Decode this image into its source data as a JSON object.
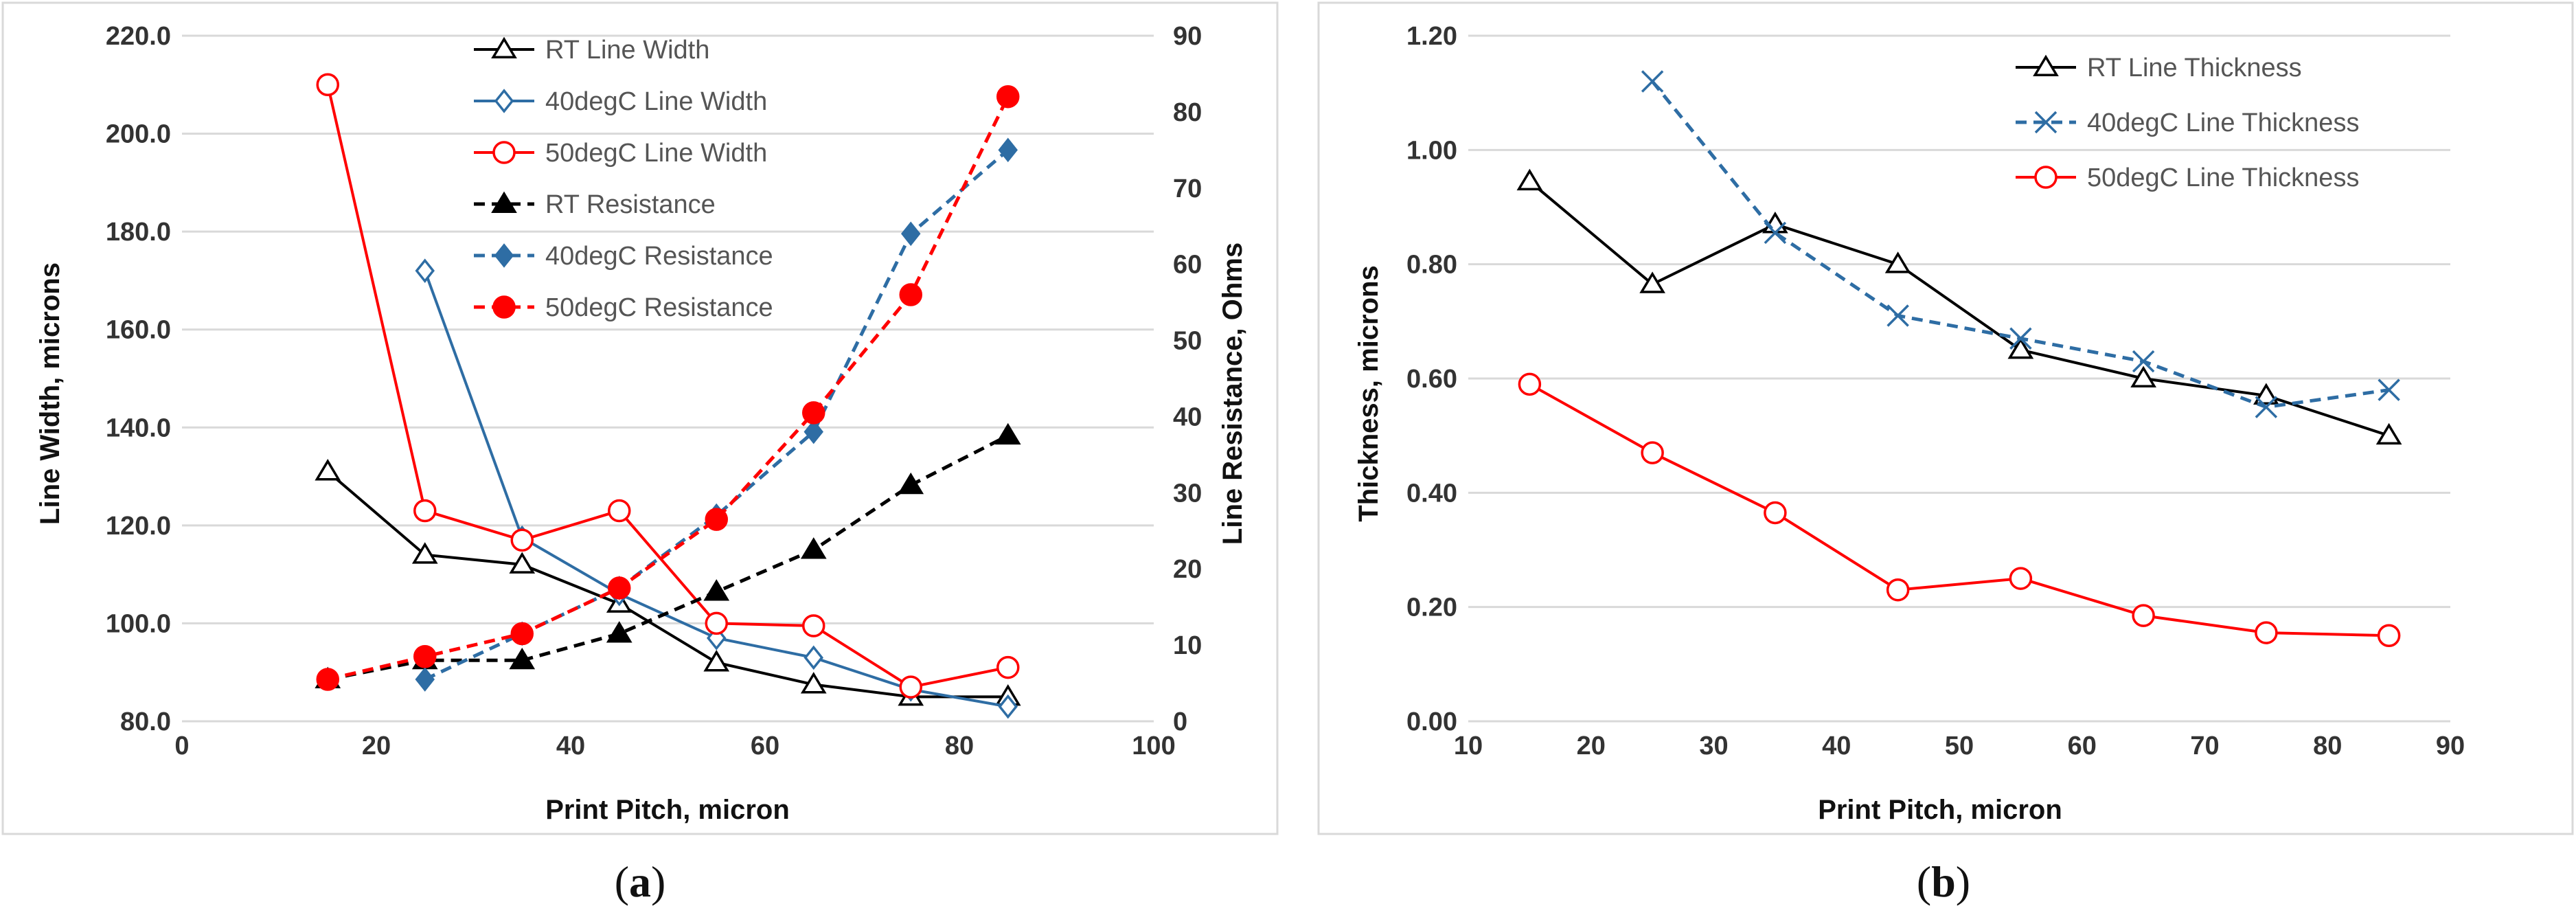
{
  "captions": {
    "a_open": "(",
    "a_letter": "a",
    "a_close": ")",
    "b_open": "(",
    "b_letter": "b",
    "b_close": ")"
  },
  "chart_data": [
    {
      "id": "a",
      "type": "line",
      "x": [
        15,
        25,
        35,
        45,
        55,
        65,
        75,
        85
      ],
      "xlabel": "Print Pitch, micron",
      "ylabel": "Line Width, microns",
      "y2label": "Line Resistance, Ohms",
      "xlim": [
        0,
        100
      ],
      "ylim": [
        80,
        220
      ],
      "y2lim": [
        0,
        90
      ],
      "xticks": [
        "0",
        "20",
        "40",
        "60",
        "80",
        "100"
      ],
      "xtick_values": [
        0,
        20,
        40,
        60,
        80,
        100
      ],
      "yticks": [
        "80.0",
        "100.0",
        "120.0",
        "140.0",
        "160.0",
        "180.0",
        "200.0",
        "220.0"
      ],
      "ytick_values": [
        80,
        100,
        120,
        140,
        160,
        180,
        200,
        220
      ],
      "y2ticks": [
        "0",
        "10",
        "20",
        "30",
        "40",
        "50",
        "60",
        "70",
        "80",
        "90"
      ],
      "y2tick_values": [
        0,
        10,
        20,
        30,
        40,
        50,
        60,
        70,
        80,
        90
      ],
      "legend_position": "top-center",
      "series": [
        {
          "name": "RT Line Width",
          "axis": "left",
          "color": "#000000",
          "dash": "solid",
          "marker": "triangle-open",
          "x": [
            15,
            25,
            35,
            45,
            55,
            65,
            75,
            85
          ],
          "values": [
            131,
            114,
            112,
            104,
            92,
            87.5,
            85,
            85
          ]
        },
        {
          "name": "40degC Line Width",
          "axis": "left",
          "color": "#2e6da4",
          "dash": "solid",
          "marker": "diamond-open",
          "x": [
            25,
            35,
            45,
            55,
            65,
            75,
            85
          ],
          "values": [
            172,
            117.5,
            106,
            97,
            93,
            86.5,
            83
          ]
        },
        {
          "name": "50degC Line Width",
          "axis": "left",
          "color": "#ff0000",
          "dash": "solid",
          "marker": "circle-open",
          "x": [
            15,
            25,
            35,
            45,
            55,
            65,
            75,
            85
          ],
          "values": [
            210,
            123,
            117,
            123,
            100,
            99.5,
            87,
            91
          ]
        },
        {
          "name": "RT Resistance",
          "axis": "right",
          "color": "#000000",
          "dash": "dashed",
          "marker": "triangle-filled",
          "x": [
            15,
            25,
            35,
            45,
            55,
            65,
            75,
            85
          ],
          "values": [
            5.5,
            8,
            8,
            11.5,
            17,
            22.5,
            31,
            37.5
          ]
        },
        {
          "name": "40degC Resistance",
          "axis": "right",
          "color": "#2e6da4",
          "dash": "dashed",
          "marker": "diamond-filled",
          "x": [
            25,
            35,
            45,
            55,
            65,
            75,
            85
          ],
          "values": [
            5.5,
            11.5,
            17.5,
            27,
            38,
            64,
            75
          ]
        },
        {
          "name": "50degC Resistance",
          "axis": "right",
          "color": "#ff0000",
          "dash": "dashed",
          "marker": "circle-filled",
          "x": [
            15,
            25,
            35,
            45,
            55,
            65,
            75,
            85
          ],
          "values": [
            5.5,
            8.5,
            11.5,
            17.5,
            26.5,
            40.5,
            56,
            82
          ]
        }
      ]
    },
    {
      "id": "b",
      "type": "line",
      "x": [
        15,
        25,
        35,
        45,
        55,
        65,
        75,
        85
      ],
      "xlabel": "Print Pitch, micron",
      "ylabel": "Thickness, microns",
      "xlim": [
        10,
        90
      ],
      "ylim": [
        0,
        1.2
      ],
      "xticks": [
        "10",
        "20",
        "30",
        "40",
        "50",
        "60",
        "70",
        "80",
        "90"
      ],
      "xtick_values": [
        10,
        20,
        30,
        40,
        50,
        60,
        70,
        80,
        90
      ],
      "yticks": [
        "0.00",
        "0.20",
        "0.40",
        "0.60",
        "0.80",
        "1.00",
        "1.20"
      ],
      "ytick_values": [
        0,
        0.2,
        0.4,
        0.6,
        0.8,
        1.0,
        1.2
      ],
      "legend_position": "top-right",
      "series": [
        {
          "name": "RT Line Thickness",
          "color": "#000000",
          "dash": "solid",
          "marker": "triangle-open",
          "x": [
            15,
            25,
            35,
            45,
            55,
            65,
            75,
            85
          ],
          "values": [
            0.945,
            0.765,
            0.87,
            0.8,
            0.65,
            0.6,
            0.57,
            0.5
          ]
        },
        {
          "name": "40degC Line Thickness",
          "color": "#2e6da4",
          "dash": "dashed",
          "marker": "x",
          "x": [
            25,
            35,
            45,
            55,
            65,
            75,
            85
          ],
          "values": [
            1.12,
            0.855,
            0.71,
            0.67,
            0.63,
            0.55,
            0.58
          ]
        },
        {
          "name": "50degC Line Thickness",
          "color": "#ff0000",
          "dash": "solid",
          "marker": "circle-open",
          "x": [
            15,
            25,
            35,
            45,
            55,
            65,
            75,
            85
          ],
          "values": [
            0.59,
            0.47,
            0.365,
            0.23,
            0.25,
            0.185,
            0.155,
            0.15
          ]
        }
      ]
    }
  ]
}
